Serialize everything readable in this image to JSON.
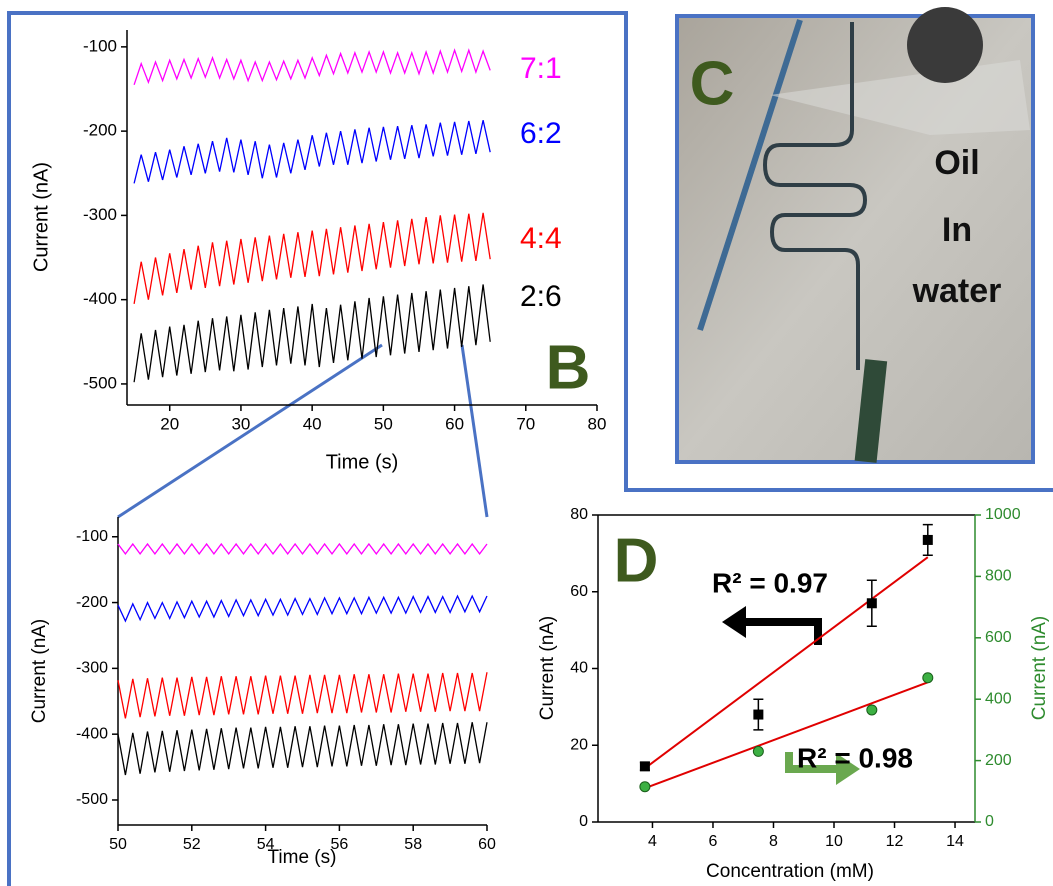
{
  "chart_data": [
    {
      "type": "line",
      "xlabel": "Time (s)",
      "ylabel": "Current (nA)",
      "panel_label": "B",
      "xlim": [
        14,
        80
      ],
      "xticks": [
        20,
        30,
        40,
        50,
        60,
        70,
        80
      ],
      "ylim": [
        -525,
        -80
      ],
      "yticks": [
        -100,
        -200,
        -300,
        -400,
        -500
      ],
      "x": [
        15,
        16,
        17,
        18,
        19,
        20,
        21,
        22,
        23,
        24,
        25,
        26,
        27,
        28,
        29,
        30,
        31,
        32,
        33,
        34,
        35,
        36,
        37,
        38,
        39,
        40,
        41,
        42,
        43,
        44,
        45,
        46,
        47,
        48,
        49,
        50,
        51,
        52,
        53,
        54,
        55,
        56,
        57,
        58,
        59,
        60,
        61,
        62,
        63,
        64,
        65
      ],
      "series": [
        {
          "name": "7:1",
          "color": "#ff00ff",
          "values": [
            -145,
            -120,
            -142,
            -118,
            -140,
            -116,
            -138,
            -115,
            -137,
            -114,
            -136,
            -113,
            -137,
            -115,
            -138,
            -116,
            -140,
            -118,
            -140,
            -118,
            -139,
            -117,
            -138,
            -116,
            -137,
            -113,
            -134,
            -110,
            -132,
            -108,
            -131,
            -107,
            -130,
            -106,
            -130,
            -106,
            -131,
            -107,
            -131,
            -107,
            -132,
            -106,
            -131,
            -105,
            -130,
            -104,
            -129,
            -104,
            -130,
            -105,
            -128
          ]
        },
        {
          "name": "6:2",
          "color": "#0000ff",
          "values": [
            -262,
            -228,
            -260,
            -225,
            -258,
            -222,
            -255,
            -218,
            -252,
            -215,
            -250,
            -212,
            -248,
            -208,
            -249,
            -210,
            -252,
            -212,
            -256,
            -216,
            -255,
            -214,
            -250,
            -210,
            -246,
            -205,
            -242,
            -202,
            -240,
            -200,
            -240,
            -198,
            -238,
            -196,
            -236,
            -195,
            -234,
            -194,
            -233,
            -193,
            -232,
            -192,
            -230,
            -190,
            -229,
            -189,
            -228,
            -188,
            -227,
            -187,
            -225
          ]
        },
        {
          "name": "4:4",
          "color": "#ff0000",
          "values": [
            -405,
            -355,
            -400,
            -350,
            -395,
            -345,
            -392,
            -340,
            -388,
            -336,
            -386,
            -332,
            -384,
            -330,
            -382,
            -328,
            -380,
            -326,
            -378,
            -324,
            -376,
            -322,
            -374,
            -320,
            -373,
            -318,
            -372,
            -316,
            -370,
            -314,
            -368,
            -312,
            -366,
            -310,
            -364,
            -308,
            -362,
            -306,
            -360,
            -304,
            -358,
            -302,
            -357,
            -300,
            -356,
            -299,
            -355,
            -298,
            -354,
            -297,
            -352
          ]
        },
        {
          "name": "2:6",
          "color": "#000000",
          "values": [
            -498,
            -440,
            -495,
            -436,
            -492,
            -432,
            -490,
            -430,
            -488,
            -425,
            -486,
            -422,
            -484,
            -420,
            -485,
            -418,
            -483,
            -415,
            -480,
            -412,
            -478,
            -410,
            -476,
            -408,
            -478,
            -405,
            -480,
            -410,
            -475,
            -406,
            -472,
            -402,
            -470,
            -398,
            -468,
            -396,
            -466,
            -394,
            -464,
            -392,
            -462,
            -390,
            -460,
            -388,
            -458,
            -386,
            -456,
            -384,
            -454,
            -382,
            -450
          ]
        }
      ]
    },
    {
      "type": "line",
      "xlabel": "Time (s)",
      "ylabel": "Current (nA)",
      "xlim": [
        50,
        60
      ],
      "xticks": [
        50,
        52,
        54,
        56,
        58,
        60
      ],
      "ylim": [
        -538,
        -70
      ],
      "yticks": [
        -100,
        -200,
        -300,
        -400,
        -500
      ],
      "x": [
        50,
        50.2,
        50.4,
        50.6,
        50.8,
        51,
        51.2,
        51.4,
        51.6,
        51.8,
        52,
        52.2,
        52.4,
        52.6,
        52.8,
        53,
        53.2,
        53.4,
        53.6,
        53.8,
        54,
        54.2,
        54.4,
        54.6,
        54.8,
        55,
        55.2,
        55.4,
        55.6,
        55.8,
        56,
        56.2,
        56.4,
        56.6,
        56.8,
        57,
        57.2,
        57.4,
        57.6,
        57.8,
        58,
        58.2,
        58.4,
        58.6,
        58.8,
        59,
        59.2,
        59.4,
        59.6,
        59.8,
        60
      ],
      "series": [
        {
          "color": "#ff00ff",
          "values": [
            -111,
            -126,
            -111,
            -126,
            -111,
            -126,
            -111,
            -126,
            -111,
            -126,
            -111,
            -126,
            -111,
            -126,
            -111,
            -126,
            -111,
            -126,
            -111,
            -126,
            -111,
            -126,
            -111,
            -126,
            -111,
            -126,
            -111,
            -126,
            -111,
            -126,
            -111,
            -126,
            -111,
            -126,
            -111,
            -126,
            -111,
            -126,
            -111,
            -126,
            -111,
            -126,
            -111,
            -126,
            -111,
            -126,
            -111,
            -126,
            -111,
            -126,
            -111
          ]
        },
        {
          "color": "#0000ff",
          "values": [
            -204,
            -228,
            -202,
            -226,
            -200,
            -224,
            -200,
            -224,
            -199,
            -223,
            -198,
            -222,
            -198,
            -222,
            -197,
            -221,
            -196,
            -220,
            -196,
            -220,
            -195,
            -219,
            -195,
            -219,
            -194,
            -218,
            -194,
            -218,
            -193,
            -217,
            -193,
            -217,
            -193,
            -217,
            -192,
            -216,
            -192,
            -216,
            -192,
            -216,
            -191,
            -215,
            -191,
            -215,
            -191,
            -215,
            -190,
            -214,
            -190,
            -214,
            -190
          ]
        },
        {
          "color": "#ff0000",
          "values": [
            -318,
            -376,
            -316,
            -374,
            -315,
            -373,
            -314,
            -372,
            -314,
            -372,
            -313,
            -371,
            -313,
            -371,
            -312,
            -370,
            -312,
            -370,
            -312,
            -370,
            -311,
            -369,
            -311,
            -369,
            -311,
            -369,
            -310,
            -368,
            -310,
            -368,
            -310,
            -368,
            -309,
            -367,
            -309,
            -367,
            -309,
            -367,
            -308,
            -366,
            -308,
            -366,
            -308,
            -366,
            -307,
            -365,
            -307,
            -365,
            -307,
            -365,
            -306
          ]
        },
        {
          "color": "#000000",
          "values": [
            -400,
            -462,
            -398,
            -460,
            -396,
            -458,
            -395,
            -457,
            -394,
            -456,
            -393,
            -455,
            -392,
            -454,
            -391,
            -453,
            -390,
            -452,
            -390,
            -452,
            -389,
            -451,
            -389,
            -451,
            -388,
            -450,
            -388,
            -450,
            -387,
            -449,
            -387,
            -449,
            -386,
            -448,
            -386,
            -448,
            -385,
            -447,
            -385,
            -447,
            -384,
            -446,
            -384,
            -446,
            -383,
            -445,
            -383,
            -445,
            -382,
            -444,
            -382
          ]
        }
      ]
    },
    {
      "type": "scatter",
      "xlabel": "Concentration (mM)",
      "ylabel": "Current (nA)",
      "y2label": "Current (nA)",
      "panel_label": "D",
      "xlim": [
        2.2,
        14.66
      ],
      "xticks": [
        4,
        6,
        8,
        10,
        12,
        14
      ],
      "ylim": [
        0,
        80
      ],
      "yticks": [
        0,
        20,
        40,
        60,
        80
      ],
      "y2lim": [
        0,
        1000
      ],
      "y2ticks": [
        0,
        200,
        400,
        600,
        800,
        1000
      ],
      "y2color": "#2e8b2e",
      "series": [
        {
          "color": "#000000",
          "marker": "square",
          "x": [
            3.75,
            7.5,
            11.25,
            13.1
          ],
          "values": [
            14.5,
            28,
            57,
            73.5
          ],
          "errors": [
            1,
            4,
            6,
            4
          ]
        },
        {
          "color": "#3cb043",
          "marker": "circle",
          "axis": "y2",
          "x": [
            3.75,
            7.5,
            11.25,
            13.1
          ],
          "values": [
            115,
            230,
            365,
            470
          ]
        }
      ],
      "fits": [
        {
          "color": "#e00000",
          "x": [
            3.75,
            13.1
          ],
          "values": [
            14,
            69
          ]
        },
        {
          "color": "#e00000",
          "axis": "y2",
          "x": [
            3.75,
            13.1
          ],
          "values": [
            110,
            455
          ]
        }
      ],
      "annotations": [
        {
          "text": "R² = 0.97"
        },
        {
          "text": "R² = 0.98"
        }
      ]
    }
  ],
  "photo": {
    "label": "C",
    "caption": [
      "Oil",
      "In",
      "water"
    ]
  }
}
